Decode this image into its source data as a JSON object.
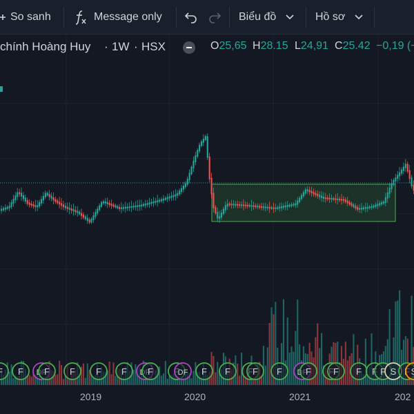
{
  "toolbar": {
    "compare_label": "So sanh",
    "indicator_label": "Message only",
    "chart_menu_label": "Biểu đồ",
    "profile_menu_label": "Hồ sơ"
  },
  "legend": {
    "symbol_title": "chính Hoàng Huy",
    "interval": "1W",
    "exchange": "HSX",
    "open_label": "O",
    "open_value": "25,65",
    "high_label": "H",
    "high_value": "28.15",
    "low_label": "L",
    "low_value": "24,91",
    "close_label": "C",
    "close_value": "25.42",
    "change_value": "−0,19 (−"
  },
  "colors": {
    "background": "#141823",
    "up": "#26a69a",
    "down": "#ef5350",
    "rectangle_fill": "#1f3a2a",
    "rectangle_border": "#4caf50",
    "dotted_line": "#26a69a",
    "event_circle_green": "#4caf50",
    "event_circle_purple": "#ab47bc",
    "event_circle_orange": "#ff9800",
    "event_circle_beige": "#e0d2b4"
  },
  "x_axis": {
    "labels": [
      "2019",
      "2020",
      "2021",
      "202"
    ]
  },
  "chart_data": {
    "type": "candlestick",
    "interval": "1W",
    "ohlc_last": {
      "open": 25.65,
      "high": 28.15,
      "low": 24.91,
      "close": 25.42,
      "change": -0.19
    },
    "events": [
      "F",
      "F",
      "DF",
      "F",
      "F",
      "F",
      "F",
      "DF",
      "F",
      "F",
      "DF",
      "F",
      "F",
      "F",
      "F",
      "F",
      "DF",
      "F",
      "F",
      "F",
      "F",
      "F",
      "F",
      "S",
      "F",
      "S"
    ]
  }
}
